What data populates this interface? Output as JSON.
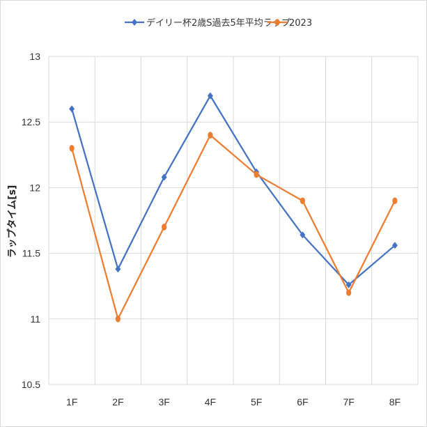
{
  "chart_data": {
    "type": "line",
    "title": "",
    "xlabel": "",
    "ylabel": "ラップタイム[s]",
    "categories": [
      "1F",
      "2F",
      "3F",
      "4F",
      "5F",
      "6F",
      "7F",
      "8F"
    ],
    "ylim": [
      10.5,
      13
    ],
    "yticks": [
      "10.5",
      "11",
      "11.5",
      "12",
      "12.5",
      "13"
    ],
    "ytick_values": [
      10.5,
      11,
      11.5,
      12,
      12.5,
      13
    ],
    "grid": true,
    "legend_position": "top",
    "series": [
      {
        "name": "デイリー杯2歳S過去5年平均ラップ",
        "color": "#4472C4",
        "marker": "diamond",
        "values": [
          12.6,
          11.38,
          12.08,
          12.7,
          12.12,
          11.64,
          11.26,
          11.56
        ]
      },
      {
        "name": "2023",
        "color": "#ED7D31",
        "marker": "circle",
        "values": [
          12.3,
          11.0,
          11.7,
          12.4,
          12.1,
          11.9,
          11.2,
          11.9
        ]
      }
    ]
  }
}
